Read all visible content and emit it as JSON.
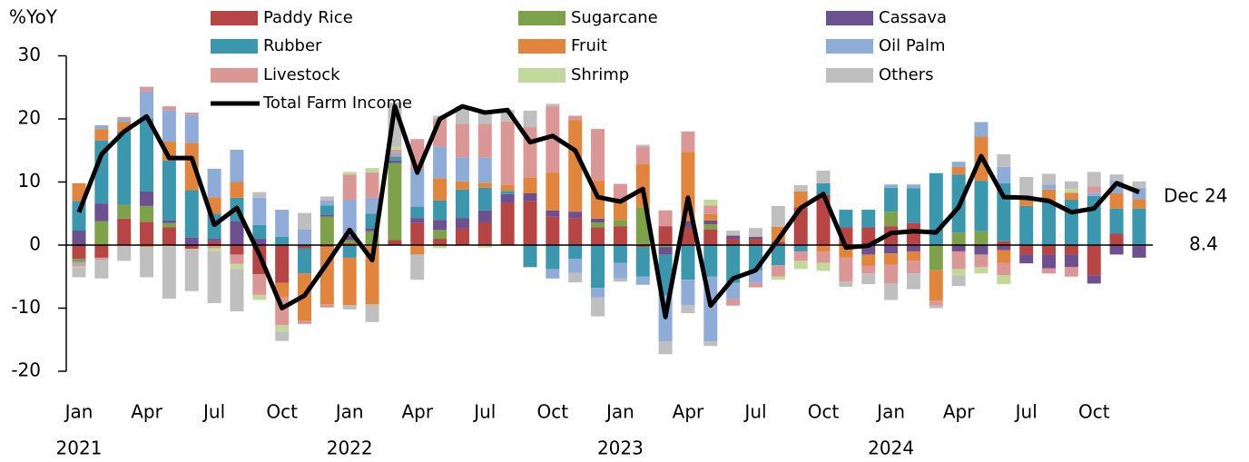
{
  "chart_data": {
    "type": "bar",
    "stacked": true,
    "y_label": "%YoY",
    "annotation": "Dec 24",
    "categories": [
      "Jan",
      null,
      null,
      "Apr",
      null,
      null,
      "Jul",
      null,
      null,
      "Oct",
      null,
      null,
      "Jan",
      null,
      null,
      "Apr",
      null,
      null,
      "Jul",
      null,
      null,
      "Oct",
      null,
      null,
      "Jan",
      null,
      null,
      "Apr",
      null,
      null,
      "Jul",
      null,
      null,
      "Oct",
      null,
      null,
      "Jan",
      null,
      null,
      "Apr",
      null,
      null,
      "Jul",
      null,
      null,
      "Oct",
      null,
      null
    ],
    "x_groups": [
      "2021",
      "2022",
      "2023",
      "2024"
    ],
    "ylim": [
      -20,
      30
    ],
    "yticks": [
      -20,
      -10,
      0,
      10,
      20,
      30
    ],
    "series": [
      {
        "name": "Paddy Rice",
        "color": "#b64543",
        "values": [
          -2.2,
          -2,
          4.2,
          3.7,
          2.8,
          -0.6,
          0.6,
          -1.5,
          -4.6,
          -6,
          -0.5,
          -0.3,
          0.3,
          0,
          0.8,
          3.5,
          1,
          2.6,
          3.6,
          6.7,
          7,
          4.5,
          4.3,
          2.8,
          3,
          -0.3,
          3,
          2.8,
          2.5,
          1,
          1,
          0.5,
          6,
          8,
          2.8,
          2.8,
          3,
          3.5,
          0,
          0,
          0,
          0.6,
          -1.5,
          -1.5,
          -1.5,
          -4.8,
          1.8,
          -0.2
        ]
      },
      {
        "name": "Sugarcane",
        "color": "#7ea24a",
        "values": [
          -0.5,
          3.8,
          2.2,
          2.5,
          0.7,
          0,
          0,
          0,
          0,
          0,
          0,
          4.5,
          0.5,
          2.2,
          12.2,
          0,
          1.4,
          0,
          0,
          0,
          0,
          0,
          0,
          0.8,
          1,
          6,
          -0.3,
          0,
          0.8,
          0,
          0,
          0,
          0,
          0,
          0,
          0,
          2.3,
          0,
          -4,
          2,
          2.2,
          0,
          0,
          0,
          0,
          0,
          0,
          0
        ]
      },
      {
        "name": "Cassava",
        "color": "#6c5090",
        "values": [
          2.3,
          2.8,
          0,
          2.3,
          0.4,
          1.2,
          0.4,
          3.8,
          1,
          0,
          0,
          0.3,
          0.7,
          0.5,
          0.4,
          0.8,
          1.6,
          1.7,
          1.9,
          1.4,
          1.2,
          1,
          1,
          0.6,
          0,
          0,
          -1.2,
          1,
          0.6,
          0.5,
          0.3,
          0,
          0,
          0,
          0,
          -1.5,
          -1.3,
          -1,
          0,
          -1,
          -1.5,
          -0.8,
          -1.4,
          -2.2,
          -2,
          -1.3,
          -1.5,
          -1.8
        ]
      },
      {
        "name": "Rubber",
        "color": "#3b97ae",
        "values": [
          4.7,
          10,
          11.6,
          11.5,
          9.5,
          7.5,
          4,
          3.7,
          2.2,
          1.3,
          -4,
          1.5,
          -2,
          2.3,
          0.6,
          1.8,
          3.1,
          4.5,
          3.6,
          0.5,
          -3.5,
          -3.8,
          -2.2,
          -6.8,
          -2.8,
          -4.7,
          -6.5,
          -5.5,
          -5,
          -6,
          -4,
          -3.2,
          -1,
          1.8,
          2.8,
          2.8,
          3.8,
          5.5,
          11.4,
          9.2,
          8,
          9.2,
          6.2,
          6.8,
          7.2,
          7.8,
          4,
          5.8
        ]
      },
      {
        "name": "Fruit",
        "color": "#e2853c",
        "values": [
          2.8,
          1.8,
          1.5,
          -0.3,
          3,
          7.5,
          2.6,
          2.5,
          0,
          -2.3,
          -7.5,
          -9.1,
          -7.5,
          -9.4,
          0.2,
          -1.5,
          3.5,
          1.3,
          0.8,
          1,
          2.5,
          6,
          14.5,
          6,
          3.2,
          6.8,
          0,
          11,
          1,
          0,
          0,
          2.4,
          2.5,
          -1,
          -2,
          -1.8,
          -1.8,
          -1.5,
          -4.8,
          1.2,
          7,
          -2,
          1.3,
          2,
          1.1,
          0,
          2.4,
          1.5
        ]
      },
      {
        "name": "Oil Palm",
        "color": "#8fabd8",
        "values": [
          -0.3,
          0.6,
          0.5,
          4.4,
          5,
          4.4,
          4.5,
          5.1,
          4.3,
          4.3,
          2.5,
          0.8,
          5.7,
          2.5,
          0.5,
          6,
          5,
          3.8,
          4,
          0,
          0,
          -1.5,
          -2.2,
          -1.5,
          -2.5,
          -1.3,
          -7.3,
          -4,
          -10.3,
          -2.6,
          -2,
          0,
          0,
          0,
          0,
          0,
          0.5,
          0.6,
          0,
          0.8,
          2.3,
          2.6,
          0.4,
          0.8,
          0,
          0.5,
          2,
          1.8
        ]
      },
      {
        "name": "Livestock",
        "color": "#da9796",
        "values": [
          -0.4,
          -0.3,
          0.3,
          0.7,
          0.6,
          0.4,
          -0.5,
          -1.5,
          -3.3,
          -4.4,
          -0.5,
          -0.5,
          4,
          4,
          0.4,
          4.7,
          4.4,
          5.3,
          5.3,
          10,
          8,
          10.5,
          0.7,
          8.2,
          2.5,
          2.8,
          2.5,
          3.2,
          1.4,
          -1,
          -0.7,
          -1.8,
          -1.5,
          -1.8,
          -3.8,
          -1.2,
          -3,
          -2,
          -0.8,
          -2.8,
          -2,
          -2,
          0,
          -0.8,
          -1.5,
          1,
          0,
          0
        ]
      },
      {
        "name": "Shrimp",
        "color": "#c3d99c",
        "values": [
          -0.2,
          0,
          0,
          0,
          -0.2,
          0,
          -0.5,
          -0.8,
          -0.8,
          -1,
          0,
          0,
          0.4,
          0.7,
          0.5,
          0,
          -0.5,
          0,
          -0.4,
          0,
          0,
          0,
          0,
          0,
          0,
          0,
          0,
          0,
          0.9,
          0,
          0,
          -0.5,
          -1.3,
          -1.3,
          0,
          0,
          0,
          0,
          0,
          -1,
          -1,
          -1.4,
          0,
          0,
          0.6,
          0,
          0,
          0
        ]
      },
      {
        "name": "Others",
        "color": "#bfbfbf",
        "values": [
          -1.5,
          -3,
          -2.5,
          -4.8,
          -8.3,
          -6.7,
          -8.2,
          -6.7,
          0.9,
          -1.5,
          2.6,
          0.6,
          -0.7,
          -2.8,
          7,
          -4,
          0.5,
          2.8,
          2.2,
          1.8,
          2.6,
          0.4,
          -1.5,
          -3,
          -0.5,
          0.3,
          -2,
          -1.3,
          -0.7,
          0.8,
          1.4,
          3.3,
          1,
          2,
          -0.8,
          -1.7,
          -2.6,
          -2.5,
          -0.4,
          -1.7,
          0,
          2,
          2.9,
          1.7,
          1.2,
          2.3,
          1,
          1
        ]
      },
      {
        "name": "Total Farm Income",
        "type": "line",
        "color": "#000000",
        "values": [
          5.2,
          14.4,
          18,
          20.4,
          13.8,
          13.8,
          3.2,
          5.9,
          -1.5,
          -10,
          -8,
          -2.9,
          2.4,
          -2.4,
          22,
          11.5,
          20,
          22,
          21,
          21.4,
          16.3,
          17.3,
          15,
          7.6,
          6.9,
          8.9,
          -11.4,
          7.5,
          -9.6,
          -5.3,
          -4,
          0.9,
          5.9,
          8.1,
          -0.4,
          -0.1,
          1.9,
          2.2,
          2,
          6,
          14.1,
          7.6,
          7.5,
          7,
          5.2,
          5.8,
          9.8,
          8.4
        ]
      }
    ]
  }
}
